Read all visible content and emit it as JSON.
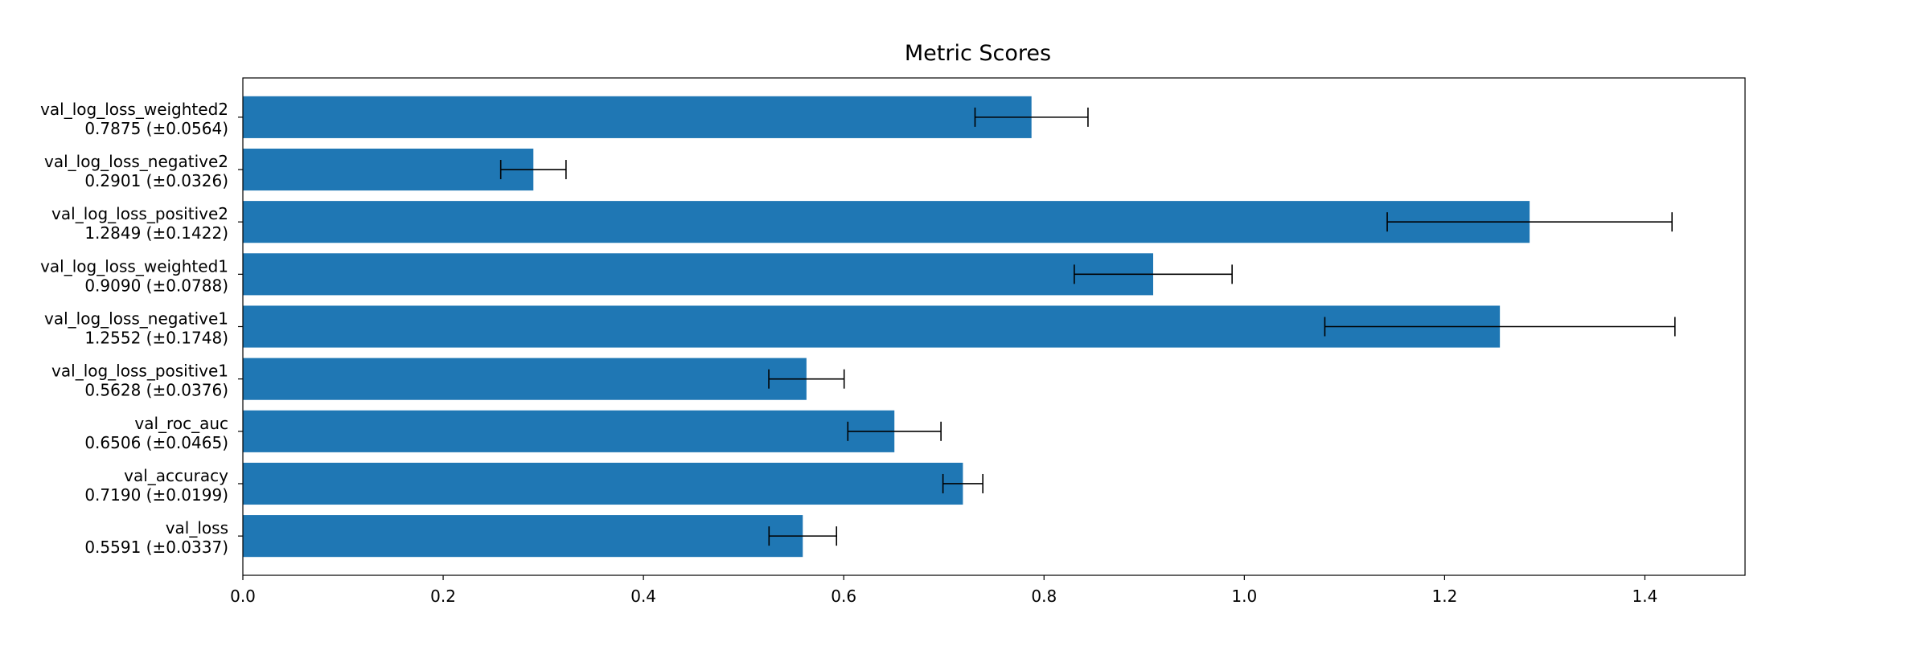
{
  "chart_data": {
    "type": "bar",
    "orientation": "horizontal",
    "title": "Metric Scores",
    "xlabel": "",
    "ylabel": "",
    "xlim": [
      0.0,
      1.5
    ],
    "xticks": [
      "0.0",
      "0.2",
      "0.4",
      "0.6",
      "0.8",
      "1.0",
      "1.2",
      "1.4"
    ],
    "grid": false,
    "legend": "none",
    "bar_color": "#1f77b4",
    "errorbar_color": "#000000",
    "categories": [
      {
        "name": "val_loss",
        "score_label": "0.5591 (±0.0337)"
      },
      {
        "name": "val_accuracy",
        "score_label": "0.7190 (±0.0199)"
      },
      {
        "name": "val_roc_auc",
        "score_label": "0.6506 (±0.0465)"
      },
      {
        "name": "val_log_loss_positive1",
        "score_label": "0.5628 (±0.0376)"
      },
      {
        "name": "val_log_loss_negative1",
        "score_label": "1.2552 (±0.1748)"
      },
      {
        "name": "val_log_loss_weighted1",
        "score_label": "0.9090 (±0.0788)"
      },
      {
        "name": "val_log_loss_positive2",
        "score_label": "1.2849 (±0.1422)"
      },
      {
        "name": "val_log_loss_negative2",
        "score_label": "0.2901 (±0.0326)"
      },
      {
        "name": "val_log_loss_weighted2",
        "score_label": "0.7875 (±0.0564)"
      }
    ],
    "values": [
      0.5591,
      0.719,
      0.6506,
      0.5628,
      1.2552,
      0.909,
      1.2849,
      0.2901,
      0.7875
    ],
    "errors": [
      0.0337,
      0.0199,
      0.0465,
      0.0376,
      0.1748,
      0.0788,
      0.1422,
      0.0326,
      0.0564
    ]
  }
}
